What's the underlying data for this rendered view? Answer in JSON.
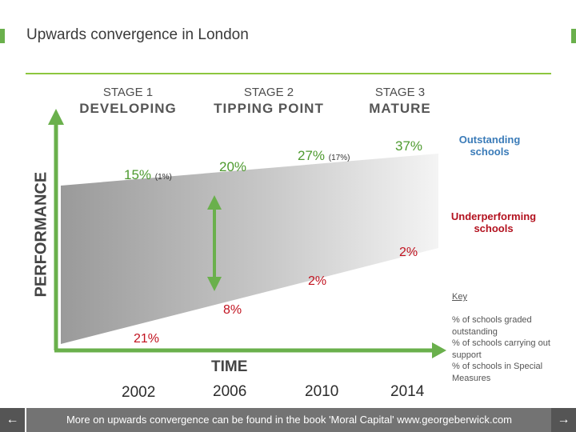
{
  "header": {
    "title": "Upwards convergence in London"
  },
  "stages": [
    {
      "label": "STAGE 1",
      "name": "DEVELOPING"
    },
    {
      "label": "STAGE 2",
      "name": "TIPPING POINT"
    },
    {
      "label": "STAGE 3",
      "name": "MATURE"
    }
  ],
  "axes": {
    "y_label": "PERFORMANCE",
    "x_label": "TIME"
  },
  "outstanding": [
    {
      "value": "15%",
      "note": "(1%)"
    },
    {
      "value": "20%"
    },
    {
      "value": "27%",
      "note": "(17%)"
    },
    {
      "value": "37%"
    }
  ],
  "support": [
    {
      "value": "21%"
    },
    {
      "value": "8%"
    },
    {
      "value": "2%"
    },
    {
      "value": "2%"
    }
  ],
  "labels": {
    "outstanding": "Outstanding schools",
    "underperforming": "Underperforming schools"
  },
  "years": [
    "2002",
    "2006",
    "2010",
    "2014"
  ],
  "key": {
    "title": "Key",
    "items": [
      "% of schools graded outstanding",
      "% of schools carrying out support",
      "% of schools in Special Measures"
    ]
  },
  "footer": {
    "text": "More on upwards convergence can be found in the book 'Moral Capital' www.georgeberwick.com"
  },
  "nav": {
    "prev": "←",
    "next": "→"
  },
  "colors": {
    "accent": "#6ab04c",
    "outstanding": "#4e9a2f",
    "support": "#c1121f",
    "footer": "#737373"
  }
}
